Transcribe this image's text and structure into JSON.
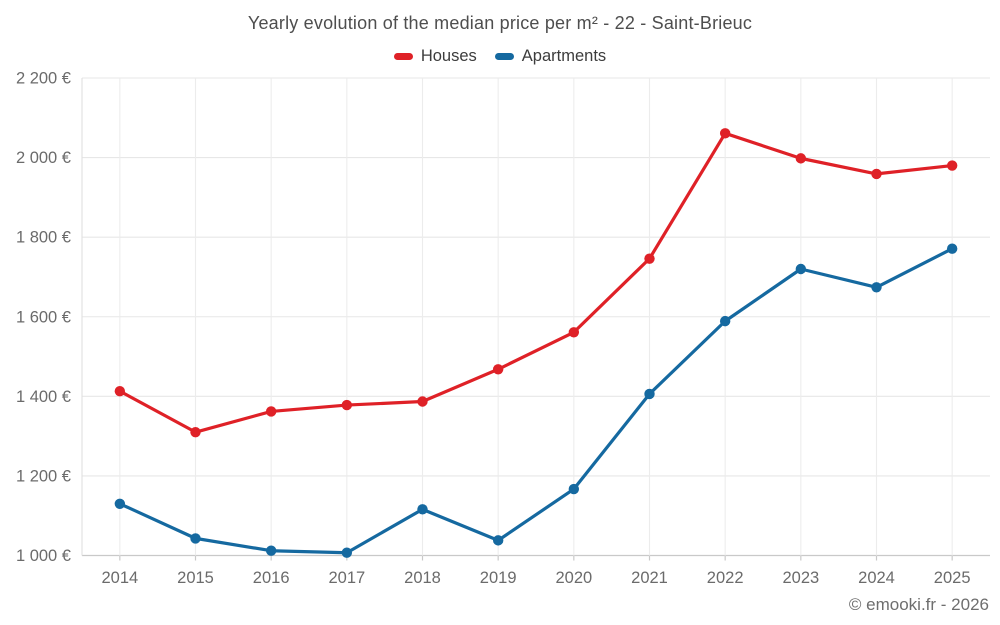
{
  "page": {
    "title": "Yearly evolution of the median price per m² - 22 - Saint-Brieuc",
    "attribution": "© emooki.fr - 2026"
  },
  "legend": {
    "items": [
      {
        "label": "Houses",
        "color": "#df2127"
      },
      {
        "label": "Apartments",
        "color": "#1569a0"
      }
    ]
  },
  "chart_data": {
    "type": "line",
    "title": "Yearly evolution of the median price per m² - 22 - Saint-Brieuc",
    "categories": [
      2014,
      2015,
      2016,
      2017,
      2018,
      2019,
      2020,
      2021,
      2022,
      2023,
      2024,
      2025
    ],
    "series": [
      {
        "name": "Houses",
        "color": "#df2127",
        "values": [
          1413,
          1310,
          1362,
          1378,
          1387,
          1468,
          1561,
          1746,
          2061,
          1998,
          1959,
          1980
        ]
      },
      {
        "name": "Apartments",
        "color": "#1569a0",
        "values": [
          1130,
          1043,
          1012,
          1007,
          1116,
          1038,
          1167,
          1406,
          1589,
          1720,
          1674,
          1771
        ]
      }
    ],
    "xlabel": "",
    "ylabel": "",
    "ylim": [
      1000,
      2200
    ],
    "ytick_step": 200,
    "ytick_labels": [
      "1 000 €",
      "1 200 €",
      "1 400 €",
      "1 600 €",
      "1 800 €",
      "2 000 €",
      "2 200 €"
    ],
    "ytick_suffix": " €",
    "grid": true,
    "legend_position": "top",
    "attribution": "© emooki.fr - 2026"
  }
}
